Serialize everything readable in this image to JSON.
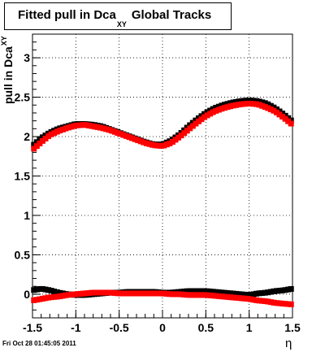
{
  "header": {
    "title_main": "Fitted pull in Dca",
    "title_sub": "XY",
    "title_suffix": "Global Tracks"
  },
  "footer": {
    "timestamp": "Fri Oct 28 01:45:05 2011"
  },
  "chart_data": {
    "type": "scatter",
    "xlabel": "η",
    "ylabel_main": "pull in Dca",
    "ylabel_sub": "XY",
    "xlim": [
      -1.5,
      1.5
    ],
    "ylim": [
      -0.3,
      3.3
    ],
    "xticks": [
      "-1.5",
      "-1",
      "-0.5",
      "0",
      "0.5",
      "1",
      "1.5"
    ],
    "xtick_values": [
      -1.5,
      -1,
      -0.5,
      0,
      0.5,
      1,
      1.5
    ],
    "yticks": [
      "0",
      "0.5",
      "1",
      "1.5",
      "2",
      "2.5",
      "3"
    ],
    "ytick_values": [
      0,
      0.5,
      1,
      1.5,
      2,
      2.5,
      3
    ],
    "grid": true,
    "colors": {
      "black_series": "#000000",
      "red_series": "#ff0000"
    },
    "series": [
      {
        "color": "black",
        "x": [
          -1.5,
          -1.4,
          -1.3,
          -1.2,
          -1.1,
          -1.0,
          -0.9,
          -0.8,
          -0.7,
          -0.6,
          -0.5,
          -0.4,
          -0.3,
          -0.2,
          -0.1,
          0.0,
          0.1,
          0.2,
          0.3,
          0.4,
          0.5,
          0.6,
          0.7,
          0.8,
          0.9,
          1.0,
          1.1,
          1.2,
          1.3,
          1.4,
          1.5
        ],
        "y": [
          1.88,
          1.98,
          2.05,
          2.1,
          2.13,
          2.16,
          2.16,
          2.15,
          2.13,
          2.09,
          2.05,
          2.01,
          1.97,
          1.93,
          1.9,
          1.9,
          1.95,
          2.03,
          2.13,
          2.22,
          2.3,
          2.36,
          2.4,
          2.43,
          2.45,
          2.46,
          2.45,
          2.42,
          2.36,
          2.28,
          2.19
        ]
      },
      {
        "color": "red",
        "x": [
          -1.5,
          -1.4,
          -1.3,
          -1.2,
          -1.1,
          -1.0,
          -0.9,
          -0.8,
          -0.7,
          -0.6,
          -0.5,
          -0.4,
          -0.3,
          -0.2,
          -0.1,
          0.0,
          0.1,
          0.2,
          0.3,
          0.4,
          0.5,
          0.6,
          0.7,
          0.8,
          0.9,
          1.0,
          1.1,
          1.2,
          1.3,
          1.4,
          1.5
        ],
        "y": [
          1.83,
          1.93,
          2.02,
          2.07,
          2.11,
          2.14,
          2.15,
          2.13,
          2.11,
          2.08,
          2.04,
          2.0,
          1.96,
          1.92,
          1.89,
          1.88,
          1.92,
          2.0,
          2.09,
          2.18,
          2.26,
          2.32,
          2.36,
          2.39,
          2.41,
          2.42,
          2.41,
          2.37,
          2.32,
          2.24,
          2.15
        ]
      },
      {
        "color": "black",
        "x": [
          -1.5,
          -1.4,
          -1.3,
          -1.2,
          -1.1,
          -1.0,
          -0.9,
          -0.8,
          -0.7,
          -0.6,
          -0.5,
          -0.4,
          -0.3,
          -0.2,
          -0.1,
          0.0,
          0.1,
          0.2,
          0.3,
          0.4,
          0.5,
          0.6,
          0.7,
          0.8,
          0.9,
          1.0,
          1.1,
          1.2,
          1.3,
          1.4,
          1.5
        ],
        "y": [
          0.05,
          0.07,
          0.05,
          0.02,
          0.0,
          -0.01,
          -0.01,
          0.0,
          0.01,
          0.02,
          0.02,
          0.03,
          0.03,
          0.03,
          0.03,
          0.02,
          0.02,
          0.03,
          0.04,
          0.04,
          0.04,
          0.03,
          0.02,
          0.01,
          0.0,
          -0.01,
          0.01,
          0.02,
          0.04,
          0.05,
          0.07
        ]
      },
      {
        "color": "red",
        "x": [
          -1.5,
          -1.4,
          -1.3,
          -1.2,
          -1.1,
          -1.0,
          -0.9,
          -0.8,
          -0.7,
          -0.6,
          -0.5,
          -0.4,
          -0.3,
          -0.2,
          -0.1,
          0.0,
          0.1,
          0.2,
          0.3,
          0.4,
          0.5,
          0.6,
          0.7,
          0.8,
          0.9,
          1.0,
          1.1,
          1.2,
          1.3,
          1.4,
          1.5
        ],
        "y": [
          -0.08,
          -0.06,
          -0.04,
          -0.03,
          -0.01,
          0.0,
          0.01,
          0.02,
          0.02,
          0.02,
          0.01,
          0.01,
          0.01,
          0.01,
          0.01,
          0.01,
          0.0,
          0.0,
          -0.01,
          -0.01,
          -0.01,
          -0.02,
          -0.03,
          -0.04,
          -0.05,
          -0.06,
          -0.08,
          -0.09,
          -0.11,
          -0.12,
          -0.13
        ]
      }
    ]
  }
}
